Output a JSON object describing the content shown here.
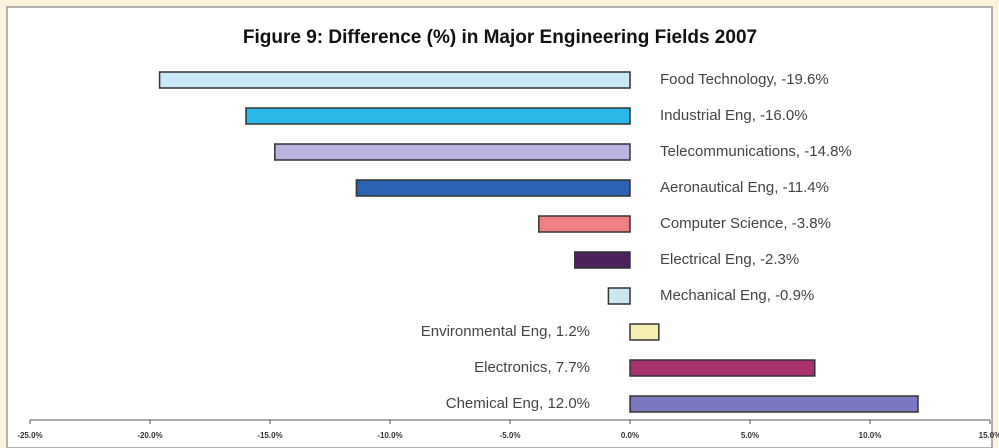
{
  "chart_data": {
    "type": "hbar",
    "title": "Figure 9: Difference (%) in Major Engineering Fields 2007",
    "categories": [
      "Food Technology, -19.6%",
      "Industrial Eng, -16.0%",
      "Telecommunications, -14.8%",
      "Aeronautical Eng, -11.4%",
      "Computer Science, -3.8%",
      "Electrical Eng, -2.3%",
      "Mechanical Eng, -0.9%",
      "Environmental Eng, 1.2%",
      "Electronics, 7.7%",
      "Chemical Eng, 12.0%"
    ],
    "values": [
      -19.6,
      -16.0,
      -14.8,
      -11.4,
      -3.8,
      -2.3,
      -0.9,
      1.2,
      7.7,
      12.0
    ],
    "colors": [
      "#c9e9f6",
      "#2bb9ea",
      "#b9b5de",
      "#2d62b3",
      "#f07f82",
      "#4d1f5c",
      "#cbe8f2",
      "#f6f0b2",
      "#a8306c",
      "#7a78c2"
    ],
    "xlim": [
      -25,
      15
    ],
    "xticks": [
      {
        "value": -25,
        "label": "-25.0%"
      },
      {
        "value": -20,
        "label": "-20.0%"
      },
      {
        "value": -15,
        "label": "-15.0%"
      },
      {
        "value": -10,
        "label": "-10.0%"
      },
      {
        "value": -5,
        "label": "-5.0%"
      },
      {
        "value": 0,
        "label": "0.0%"
      },
      {
        "value": 5,
        "label": "5.0%"
      },
      {
        "value": 10,
        "label": "10.0%"
      },
      {
        "value": 15,
        "label": "15.0%"
      }
    ]
  }
}
